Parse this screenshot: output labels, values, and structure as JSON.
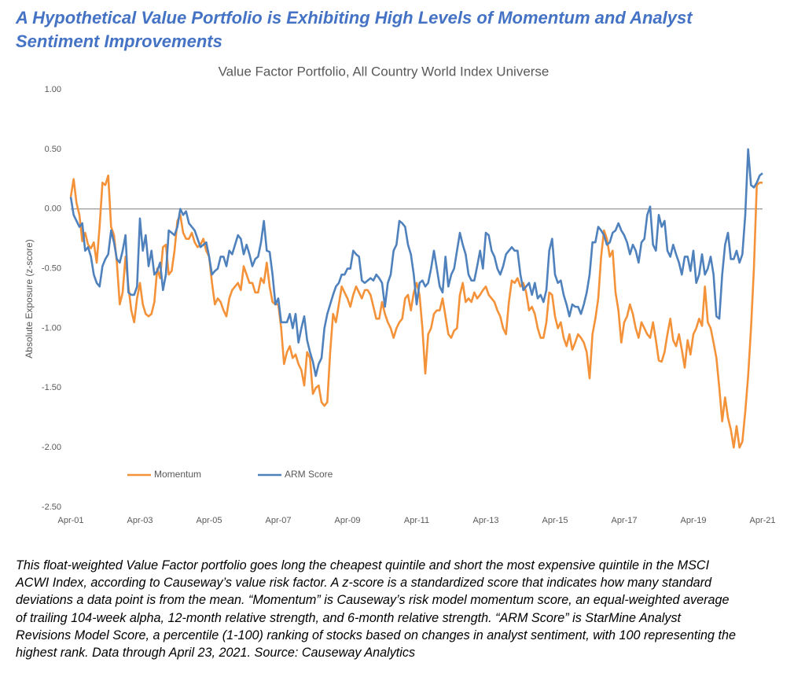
{
  "heading": [
    "A Hypothetical Value Portfolio is Exhibiting High Levels of Momentum and Analyst",
    "Sentiment Improvements"
  ],
  "note": [
    "This float-weighted Value Factor portfolio goes long the cheapest quintile and short the most expensive quintile in the MSCI",
    "ACWI Index, according to Causeway’s value risk factor. A z-score is a standardized score that indicates how many standard",
    "deviations a data point is from the mean. “Momentum” is Causeway’s risk model momentum score, an equal-weighted average",
    "of trailing 104-week alpha, 12-month relative strength, and 6-month relative strength.  “ARM Score” is StarMine Analyst",
    "Revisions Model Score, a percentile (1-100) ranking of stocks based on changes in analyst sentiment, with 100 representing the",
    "highest rank. Data through April 23, 2021. Source: Causeway Analytics"
  ],
  "chart_data": {
    "type": "line",
    "title": "Value Factor Portfolio, All Country World Index Universe",
    "y_label": "Absolute Exposure (z-score)",
    "categories": [
      "Apr-01",
      null,
      null,
      null,
      null,
      null,
      null,
      null,
      null,
      null,
      null,
      null,
      null,
      null,
      null,
      null,
      null,
      null,
      null,
      null,
      null,
      null,
      null,
      null,
      "Apr-03",
      null,
      null,
      null,
      null,
      null,
      null,
      null,
      null,
      null,
      null,
      null,
      null,
      null,
      null,
      null,
      null,
      null,
      null,
      null,
      null,
      null,
      null,
      null,
      "Apr-05",
      null,
      null,
      null,
      null,
      null,
      null,
      null,
      null,
      null,
      null,
      null,
      null,
      null,
      null,
      null,
      null,
      null,
      null,
      null,
      null,
      null,
      null,
      null,
      "Apr-07",
      null,
      null,
      null,
      null,
      null,
      null,
      null,
      null,
      null,
      null,
      null,
      null,
      null,
      null,
      null,
      null,
      null,
      null,
      null,
      null,
      null,
      null,
      null,
      "Apr-09",
      null,
      null,
      null,
      null,
      null,
      null,
      null,
      null,
      null,
      null,
      null,
      null,
      null,
      null,
      null,
      null,
      null,
      null,
      null,
      null,
      null,
      null,
      null,
      "Apr-11",
      null,
      null,
      null,
      null,
      null,
      null,
      null,
      null,
      null,
      null,
      null,
      null,
      null,
      null,
      null,
      null,
      null,
      null,
      null,
      null,
      null,
      null,
      null,
      "Apr-13",
      null,
      null,
      null,
      null,
      null,
      null,
      null,
      null,
      null,
      null,
      null,
      null,
      null,
      null,
      null,
      null,
      null,
      null,
      null,
      null,
      null,
      null,
      null,
      "Apr-15",
      null,
      null,
      null,
      null,
      null,
      null,
      null,
      null,
      null,
      null,
      null,
      null,
      null,
      null,
      null,
      null,
      null,
      null,
      null,
      null,
      null,
      null,
      null,
      "Apr-17",
      null,
      null,
      null,
      null,
      null,
      null,
      null,
      null,
      null,
      null,
      null,
      null,
      null,
      null,
      null,
      null,
      null,
      null,
      null,
      null,
      null,
      null,
      null,
      "Apr-19",
      null,
      null,
      null,
      null,
      null,
      null,
      null,
      null,
      null,
      null,
      null,
      null,
      null,
      null,
      null,
      null,
      null,
      null,
      null,
      null,
      null,
      null,
      null,
      "Apr-21"
    ],
    "series": [
      {
        "name": "Momentum",
        "color": "#f4923a",
        "values": [
          0.1,
          0.25,
          0.05,
          -0.05,
          -0.27,
          -0.2,
          -0.3,
          -0.33,
          -0.28,
          -0.45,
          -0.15,
          0.22,
          0.2,
          0.28,
          -0.15,
          -0.22,
          -0.45,
          -0.8,
          -0.7,
          -0.4,
          -0.65,
          -0.85,
          -0.95,
          -0.75,
          -0.62,
          -0.8,
          -0.88,
          -0.9,
          -0.88,
          -0.78,
          -0.5,
          -0.58,
          -0.32,
          -0.3,
          -0.55,
          -0.52,
          -0.35,
          -0.1,
          -0.05,
          -0.2,
          -0.25,
          -0.25,
          -0.2,
          -0.28,
          -0.32,
          -0.3,
          -0.25,
          -0.35,
          -0.4,
          -0.62,
          -0.8,
          -0.75,
          -0.78,
          -0.85,
          -0.9,
          -0.75,
          -0.68,
          -0.65,
          -0.62,
          -0.68,
          -0.48,
          -0.55,
          -0.62,
          -0.62,
          -0.7,
          -0.7,
          -0.58,
          -0.62,
          -0.45,
          -0.65,
          -0.78,
          -0.8,
          -0.8,
          -1.0,
          -1.3,
          -1.2,
          -1.15,
          -1.25,
          -1.22,
          -1.3,
          -1.35,
          -1.48,
          -1.2,
          -1.25,
          -1.55,
          -1.5,
          -1.48,
          -1.62,
          -1.65,
          -1.62,
          -1.2,
          -0.88,
          -0.95,
          -0.8,
          -0.65,
          -0.7,
          -0.75,
          -0.82,
          -0.72,
          -0.65,
          -0.7,
          -0.75,
          -0.68,
          -0.68,
          -0.72,
          -0.82,
          -0.92,
          -0.92,
          -0.78,
          -0.88,
          -0.95,
          -1.0,
          -1.08,
          -1.0,
          -0.95,
          -0.92,
          -0.75,
          -0.72,
          -0.85,
          -0.7,
          -0.62,
          -0.72,
          -1.0,
          -1.38,
          -1.05,
          -1.0,
          -0.88,
          -0.85,
          -0.85,
          -0.75,
          -0.9,
          -1.05,
          -1.08,
          -1.02,
          -1.0,
          -0.72,
          -0.62,
          -0.78,
          -0.75,
          -0.78,
          -0.7,
          -0.75,
          -0.72,
          -0.68,
          -0.65,
          -0.72,
          -0.75,
          -0.78,
          -0.85,
          -0.9,
          -1.0,
          -1.05,
          -0.78,
          -0.6,
          -0.62,
          -0.58,
          -0.65,
          -0.62,
          -0.7,
          -0.85,
          -0.82,
          -0.88,
          -1.0,
          -1.08,
          -1.08,
          -0.95,
          -0.7,
          -0.72,
          -0.9,
          -1.0,
          -0.95,
          -1.08,
          -1.15,
          -1.05,
          -1.18,
          -1.12,
          -1.05,
          -1.08,
          -1.12,
          -1.2,
          -1.42,
          -1.05,
          -0.92,
          -0.75,
          -0.4,
          -0.18,
          -0.25,
          -0.4,
          -0.35,
          -0.7,
          -0.85,
          -1.12,
          -0.95,
          -0.9,
          -0.8,
          -0.88,
          -1.0,
          -1.08,
          -0.95,
          -1.0,
          -1.05,
          -1.08,
          -0.95,
          -1.1,
          -1.27,
          -1.28,
          -1.2,
          -1.05,
          -0.92,
          -1.1,
          -1.15,
          -1.05,
          -1.18,
          -1.33,
          -1.1,
          -1.22,
          -1.05,
          -1.0,
          -0.92,
          -0.98,
          -0.65,
          -0.95,
          -1.0,
          -1.12,
          -1.25,
          -1.5,
          -1.78,
          -1.58,
          -1.75,
          -1.85,
          -2.0,
          -1.82,
          -2.0,
          -1.95,
          -1.7,
          -1.4,
          -1.0,
          -0.5,
          0.2,
          0.22,
          0.22
        ]
      },
      {
        "name": "ARM Score",
        "color": "#4f81bd",
        "values": [
          0.1,
          -0.05,
          -0.1,
          -0.15,
          -0.12,
          -0.35,
          -0.32,
          -0.4,
          -0.55,
          -0.62,
          -0.65,
          -0.48,
          -0.42,
          -0.38,
          -0.18,
          -0.28,
          -0.42,
          -0.45,
          -0.35,
          -0.22,
          -0.7,
          -0.72,
          -0.72,
          -0.65,
          -0.08,
          -0.35,
          -0.22,
          -0.48,
          -0.35,
          -0.55,
          -0.52,
          -0.45,
          -0.68,
          -0.55,
          -0.18,
          -0.2,
          -0.22,
          -0.15,
          0.0,
          -0.05,
          -0.02,
          -0.12,
          -0.15,
          -0.18,
          -0.25,
          -0.32,
          -0.3,
          -0.28,
          -0.4,
          -0.55,
          -0.52,
          -0.5,
          -0.4,
          -0.4,
          -0.48,
          -0.35,
          -0.38,
          -0.3,
          -0.22,
          -0.25,
          -0.38,
          -0.3,
          -0.38,
          -0.48,
          -0.42,
          -0.4,
          -0.28,
          -0.1,
          -0.35,
          -0.36,
          -0.55,
          -0.8,
          -0.75,
          -0.95,
          -0.95,
          -0.95,
          -0.88,
          -1.0,
          -0.88,
          -1.12,
          -1.0,
          -0.9,
          -1.1,
          -1.2,
          -1.28,
          -1.4,
          -1.3,
          -1.25,
          -1.0,
          -0.88,
          -0.8,
          -0.72,
          -0.65,
          -0.62,
          -0.55,
          -0.55,
          -0.5,
          -0.5,
          -0.35,
          -0.38,
          -0.4,
          -0.6,
          -0.62,
          -0.6,
          -0.58,
          -0.6,
          -0.55,
          -0.58,
          -0.62,
          -0.82,
          -0.62,
          -0.55,
          -0.35,
          -0.3,
          -0.1,
          -0.12,
          -0.15,
          -0.3,
          -0.38,
          -0.55,
          -0.8,
          -0.62,
          -0.6,
          -0.65,
          -0.62,
          -0.5,
          -0.35,
          -0.5,
          -0.65,
          -0.7,
          -0.4,
          -0.65,
          -0.55,
          -0.5,
          -0.35,
          -0.2,
          -0.3,
          -0.38,
          -0.55,
          -0.6,
          -0.6,
          -0.48,
          -0.35,
          -0.5,
          -0.2,
          -0.22,
          -0.35,
          -0.4,
          -0.5,
          -0.55,
          -0.48,
          -0.38,
          -0.35,
          -0.32,
          -0.35,
          -0.35,
          -0.55,
          -0.68,
          -0.65,
          -0.62,
          -0.72,
          -0.62,
          -0.75,
          -0.72,
          -0.78,
          -0.68,
          -0.35,
          -0.25,
          -0.55,
          -0.62,
          -0.6,
          -0.72,
          -0.8,
          -0.9,
          -0.8,
          -0.82,
          -0.82,
          -0.88,
          -0.8,
          -0.7,
          -0.55,
          -0.28,
          -0.28,
          -0.15,
          -0.18,
          -0.22,
          -0.3,
          -0.28,
          -0.2,
          -0.18,
          -0.12,
          -0.18,
          -0.22,
          -0.28,
          -0.38,
          -0.3,
          -0.35,
          -0.45,
          -0.28,
          -0.25,
          -0.05,
          0.02,
          -0.3,
          -0.35,
          -0.05,
          -0.15,
          -0.1,
          -0.35,
          -0.4,
          -0.3,
          -0.38,
          -0.45,
          -0.55,
          -0.4,
          -0.4,
          -0.52,
          -0.35,
          -0.62,
          -0.55,
          -0.38,
          -0.55,
          -0.5,
          -0.4,
          -0.55,
          -0.9,
          -0.92,
          -0.55,
          -0.3,
          -0.2,
          -0.42,
          -0.42,
          -0.35,
          -0.45,
          -0.38,
          -0.05,
          0.5,
          0.2,
          0.18,
          0.22,
          0.28,
          0.3
        ]
      }
    ],
    "ylim": [
      -2.5,
      1
    ],
    "yticks": [
      {
        "value": -2.5,
        "label": "-2.50"
      },
      {
        "value": -2,
        "label": "-2.00"
      },
      {
        "value": -1.5,
        "label": "-1.50"
      },
      {
        "value": -1,
        "label": "-1.00"
      },
      {
        "value": -0.5,
        "label": "-0.50"
      },
      {
        "value": 0,
        "label": "0.00"
      },
      {
        "value": 0.5,
        "label": "0.50"
      },
      {
        "value": 1,
        "label": "1.00"
      }
    ],
    "grid": false,
    "legend": "lower left"
  }
}
